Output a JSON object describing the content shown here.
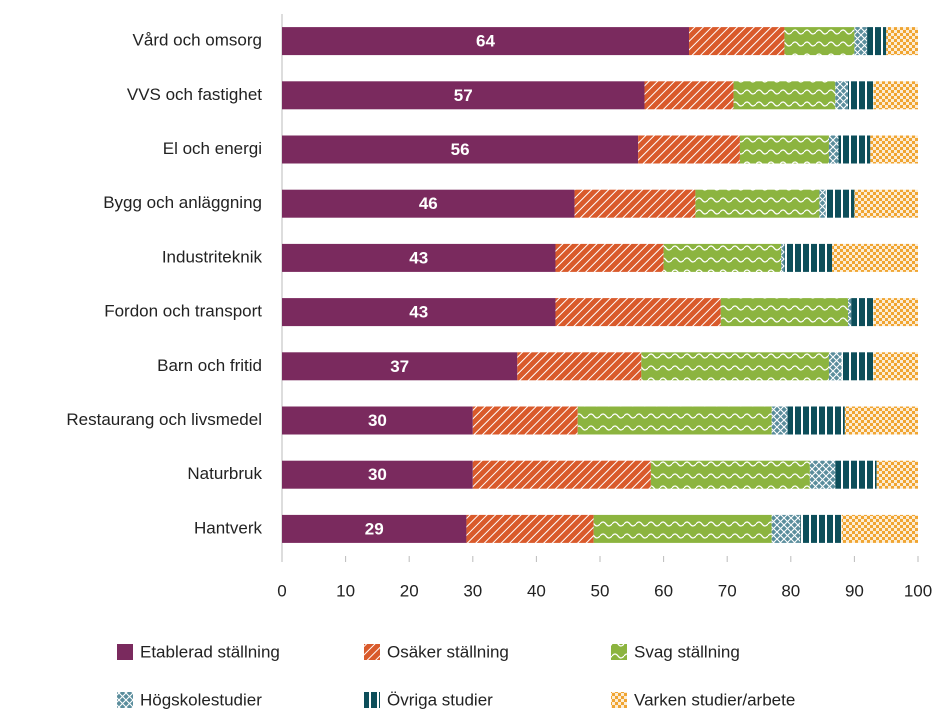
{
  "chart_data": {
    "type": "stacked_bar_horizontal",
    "categories": [
      "Vård och omsorg",
      "VVS och fastighet",
      "El och energi",
      "Bygg och anläggning",
      "Industriteknik",
      "Fordon och transport",
      "Barn och fritid",
      "Restaurang och livsmedel",
      "Naturbruk",
      "Hantverk"
    ],
    "series": [
      {
        "name": "Etablerad ställning",
        "color": "#7a2a5e",
        "pattern": "solid",
        "data_labels": true,
        "values": [
          64,
          57,
          56,
          46,
          43,
          43,
          37,
          30,
          30,
          29
        ]
      },
      {
        "name": "Osäker ställning",
        "color": "#d95a2b",
        "pattern": "diagonal",
        "values": [
          15,
          14,
          16,
          19,
          17,
          26,
          19.5,
          16.5,
          28,
          20
        ]
      },
      {
        "name": "Svag ställning",
        "color": "#8cb43f",
        "pattern": "wave",
        "values": [
          11,
          16,
          14,
          19.5,
          18.5,
          20,
          29.5,
          30.5,
          25,
          28
        ]
      },
      {
        "name": "Högskolestudier",
        "color": "#5a8d9c",
        "pattern": "cross",
        "values": [
          2,
          2,
          1.5,
          1,
          0.5,
          0.5,
          2,
          2.5,
          4,
          4.5
        ]
      },
      {
        "name": "Övriga studier",
        "color": "#0d4e5a",
        "pattern": "vertical",
        "values": [
          3,
          4,
          5,
          4.5,
          7.5,
          3.5,
          5,
          9,
          6.5,
          6.5
        ]
      },
      {
        "name": "Varken studier/arbete",
        "color": "#f0a532",
        "pattern": "checker",
        "values": [
          5,
          7,
          7.5,
          10,
          13.5,
          7,
          7,
          11.5,
          6.5,
          12
        ]
      }
    ],
    "xlim": [
      0,
      100
    ],
    "xticks": [
      0,
      10,
      20,
      30,
      40,
      50,
      60,
      70,
      80,
      90,
      100
    ]
  }
}
